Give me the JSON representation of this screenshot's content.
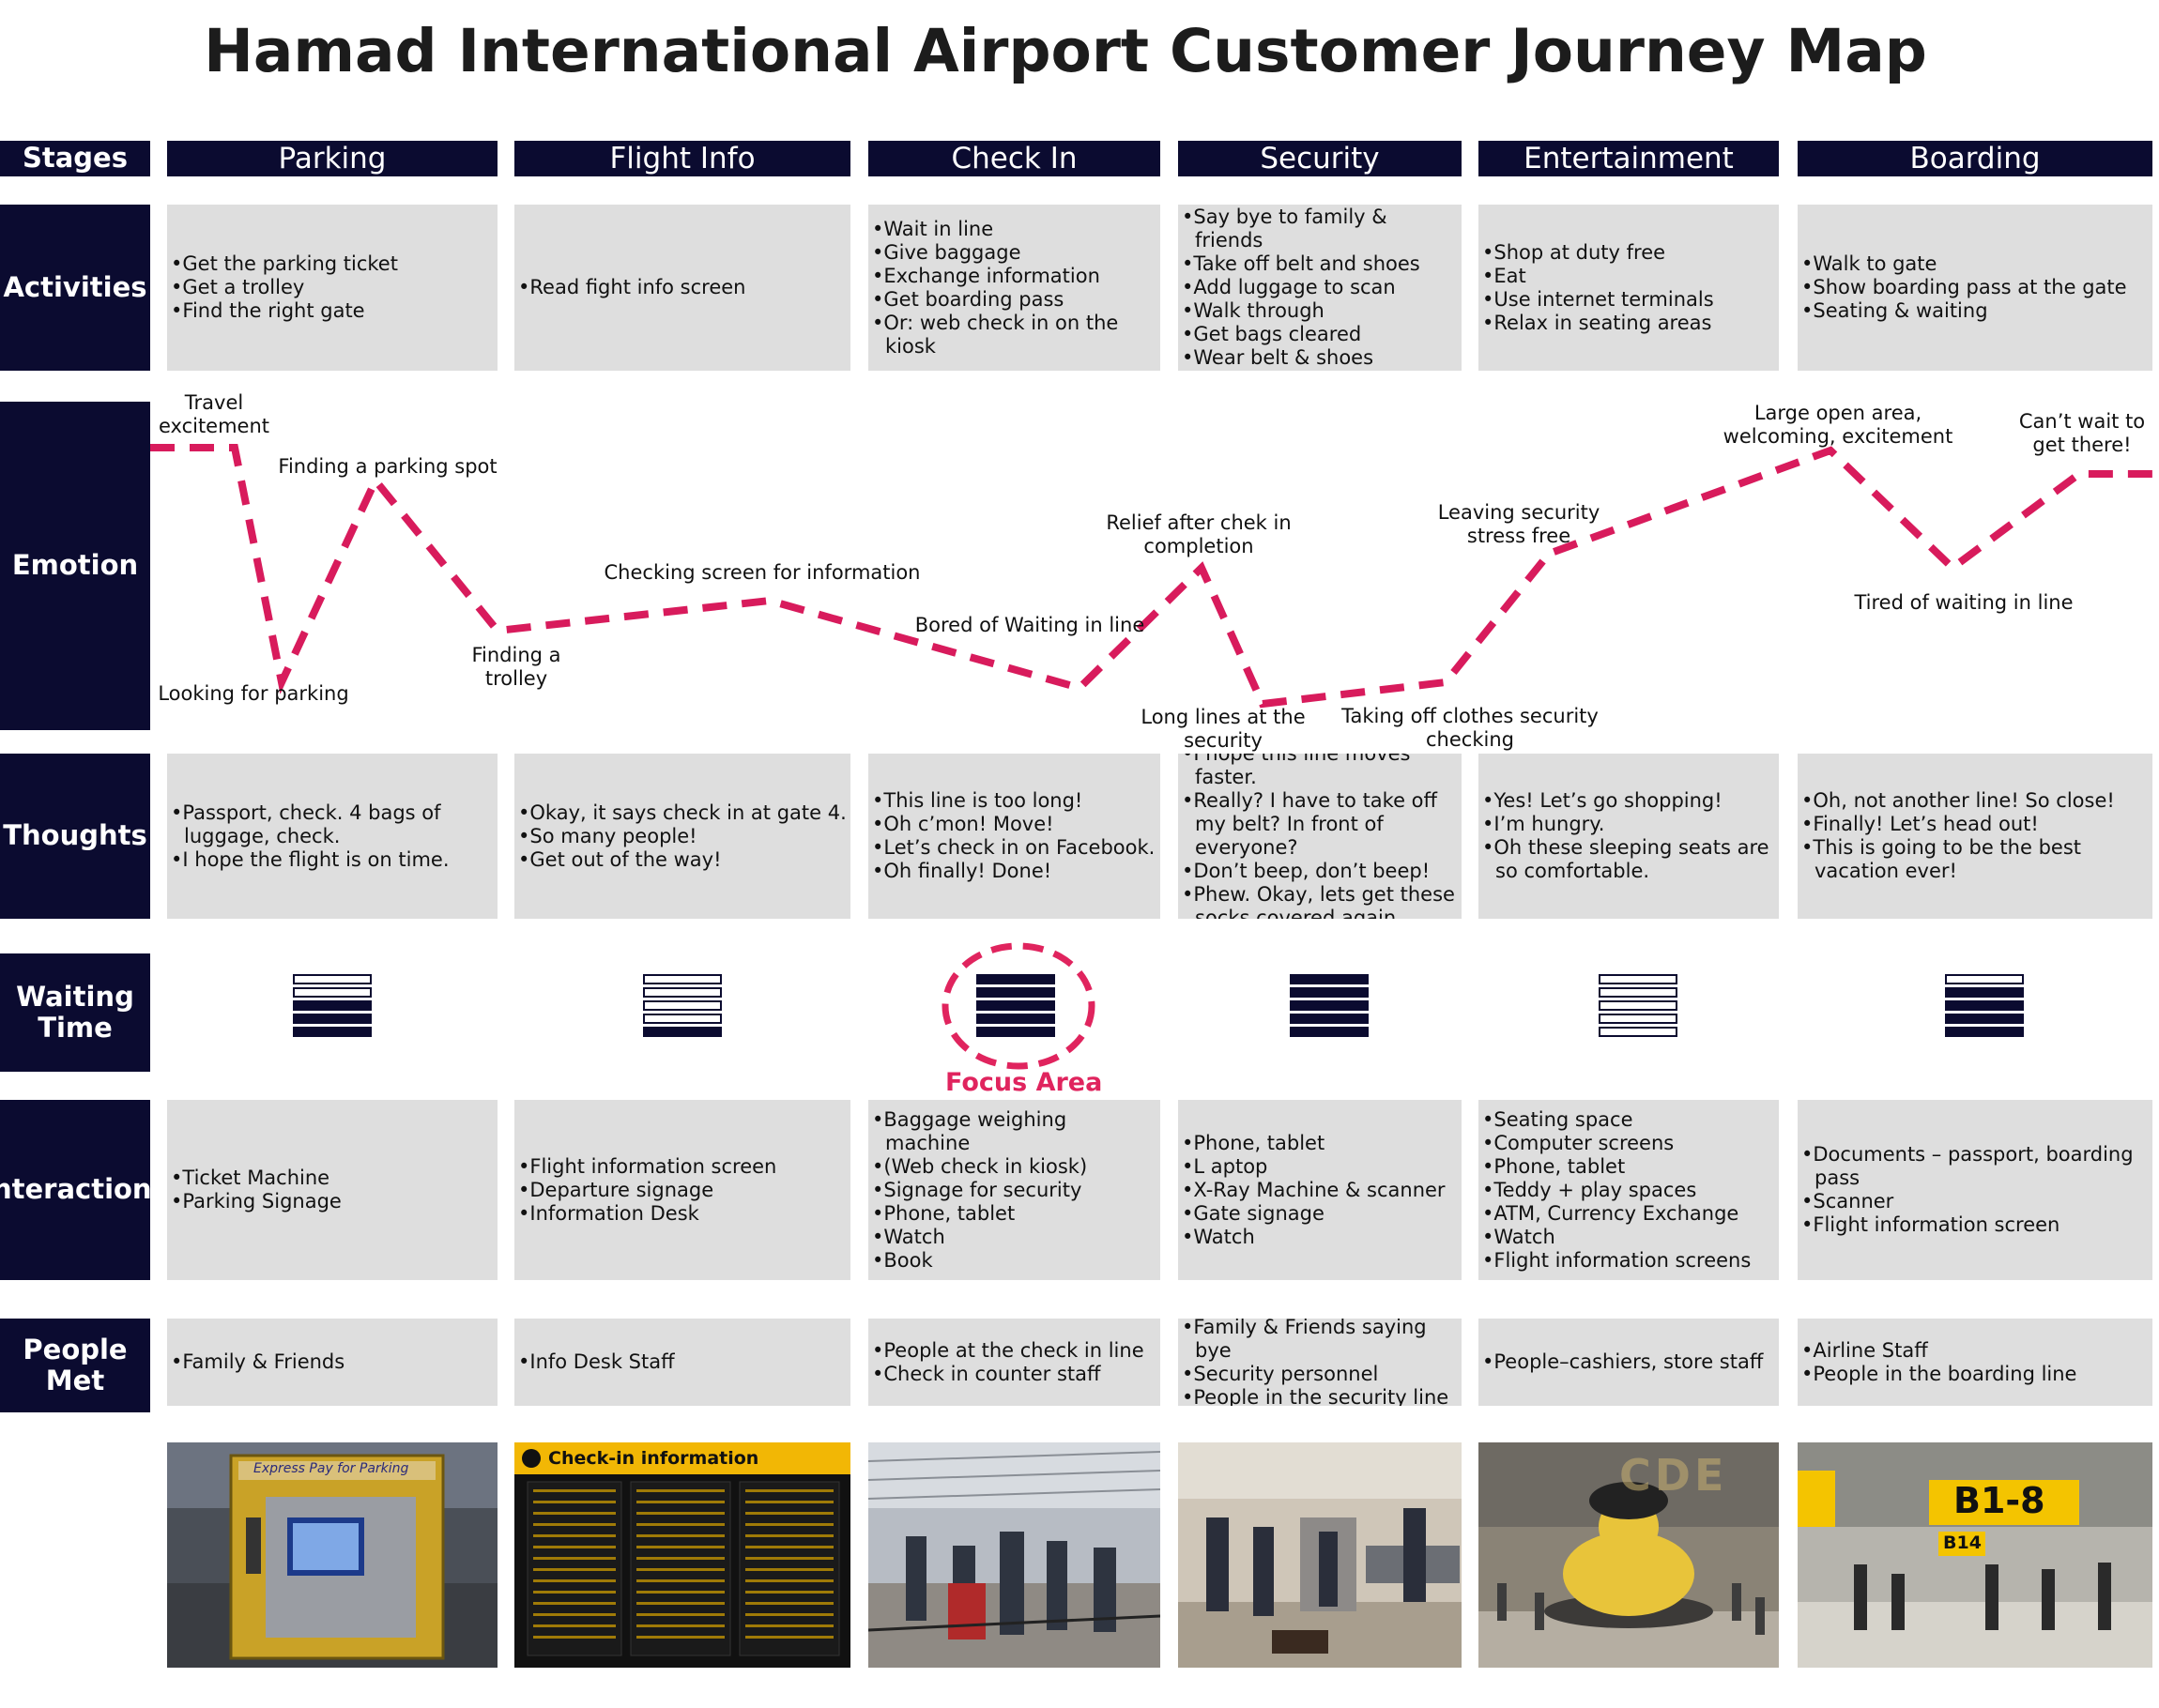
{
  "title": "Hamad International Airport Customer Journey Map",
  "row_labels": {
    "stages": "Stages",
    "activities": "Activities",
    "emotion": "Emotion",
    "thoughts": "Thoughts",
    "waiting_line1": "Waiting",
    "waiting_line2": "Time",
    "interactions": "Interactions",
    "people_line1": "People",
    "people_line2": "Met"
  },
  "stages": [
    {
      "name": "Parking",
      "activities": [
        "•Get the parking ticket",
        "•Get a trolley",
        "•Find the right gate"
      ],
      "thoughts": [
        "•Passport, check. 4 bags of luggage, check.",
        "•I hope the flight is on time."
      ],
      "waiting_filled": [
        false,
        false,
        true,
        true,
        true
      ],
      "interactions": [
        "•Ticket Machine",
        "•Parking Signage"
      ],
      "people": [
        "•Family & Friends"
      ],
      "photo": "parking-ticket-machine"
    },
    {
      "name": "Flight Info",
      "activities": [
        "•Read fight info screen"
      ],
      "thoughts": [
        "•Okay, it says check in at gate 4.",
        "•So many people!",
        "•Get out of the way!"
      ],
      "waiting_filled": [
        false,
        false,
        false,
        false,
        true
      ],
      "interactions": [
        "•Flight information screen",
        "•Departure signage",
        "•Information Desk"
      ],
      "people": [
        "•Info Desk Staff"
      ],
      "photo": "check-in-information-board"
    },
    {
      "name": "Check In",
      "activities": [
        "•Wait in line",
        "•Give baggage",
        "•Exchange information",
        "•Get boarding pass",
        "•Or: web check in on the kiosk"
      ],
      "thoughts": [
        "•This line is too long!",
        "•Oh c’mon! Move!",
        "•Let’s check in on Facebook.",
        "•Oh finally! Done!"
      ],
      "waiting_filled": [
        true,
        true,
        true,
        true,
        true
      ],
      "interactions": [
        "•Baggage weighing machine",
        "•(Web check in kiosk)",
        "•Signage for security",
        "•Phone, tablet",
        "•Watch",
        "•Book"
      ],
      "people": [
        "•People at the check in line",
        "•Check in counter staff"
      ],
      "photo": "check-in-hall-queue"
    },
    {
      "name": "Security",
      "activities": [
        "•Say bye to family & friends",
        "•Take off belt and shoes",
        "•Add luggage to scan",
        "•Walk through",
        "•Get bags cleared",
        "•Wear belt & shoes"
      ],
      "thoughts": [
        "•I hope this line moves faster.",
        "•Really? I have to take off my belt? In front of everyone?",
        "•Don’t beep, don’t beep!",
        "•Phew. Okay, lets get these socks covered again."
      ],
      "waiting_filled": [
        true,
        true,
        true,
        true,
        true
      ],
      "interactions": [
        "•Phone, tablet",
        "•L aptop",
        "•X-Ray Machine & scanner",
        "•Gate signage",
        "•Watch"
      ],
      "people": [
        "•Family & Friends saying bye",
        "•Security personnel",
        "•People in the security line"
      ],
      "photo": "security-checkpoint"
    },
    {
      "name": "Entertainment",
      "activities": [
        "•Shop at duty free",
        "•Eat",
        "•Use internet terminals",
        "•Relax in seating areas"
      ],
      "thoughts": [
        "•Yes! Let’s go shopping!",
        "•I’m hungry.",
        "•Oh these sleeping seats are so comfortable."
      ],
      "waiting_filled": [
        false,
        false,
        false,
        false,
        false
      ],
      "interactions": [
        "•Seating space",
        "•Computer screens",
        "•Phone, tablet",
        "•Teddy + play spaces",
        "•ATM, Currency Exchange",
        "•Watch",
        "•Flight information screens"
      ],
      "people": [
        "•People–cashiers, store staff"
      ],
      "photo": "terminal-lamp-bear"
    },
    {
      "name": "Boarding",
      "activities": [
        "•Walk to gate",
        "•Show boarding pass at the gate",
        "•Seating & waiting"
      ],
      "thoughts": [
        "•Oh, not another line! So close!",
        "•Finally! Let’s head out!",
        "•This is going to be the best vacation ever!"
      ],
      "waiting_filled": [
        false,
        true,
        true,
        true,
        true
      ],
      "interactions": [
        "•Documents – passport, boarding pass",
        "•Scanner",
        "•Flight information screen"
      ],
      "people": [
        "•Airline Staff",
        "•People in the boarding line"
      ],
      "photo": "gate-signage-b1-8"
    }
  ],
  "emotion_points": [
    {
      "label": "Travel\nexcitement"
    },
    {
      "label": "Looking for parking"
    },
    {
      "label": "Finding a parking spot"
    },
    {
      "label": "Finding a\ntrolley"
    },
    {
      "label": "Checking screen for information"
    },
    {
      "label": "Bored of Waiting in line"
    },
    {
      "label": "Relief after chek in\ncompletion"
    },
    {
      "label": "Long lines at the\nsecurity"
    },
    {
      "label": "Taking off clothes security\nchecking"
    },
    {
      "label": "Leaving security\nstress free"
    },
    {
      "label": "Large open area,\nwelcoming, excitement"
    },
    {
      "label": "Tired of waiting in line"
    },
    {
      "label": "Can’t wait to\nget there!"
    }
  ],
  "focus_area_label": "Focus Area",
  "photo_texts": {
    "parking_sign": "Express Pay for Parking",
    "flight_board": "Check-in information",
    "terminal_sign": "CDE",
    "gate_sign": "B1-8",
    "gate_sign_2": "B14"
  },
  "colors": {
    "navy": "#0b0b30",
    "cell_gray": "#dedede",
    "emotion_line": "#d81b5c",
    "focus_ring": "#e0245e"
  }
}
